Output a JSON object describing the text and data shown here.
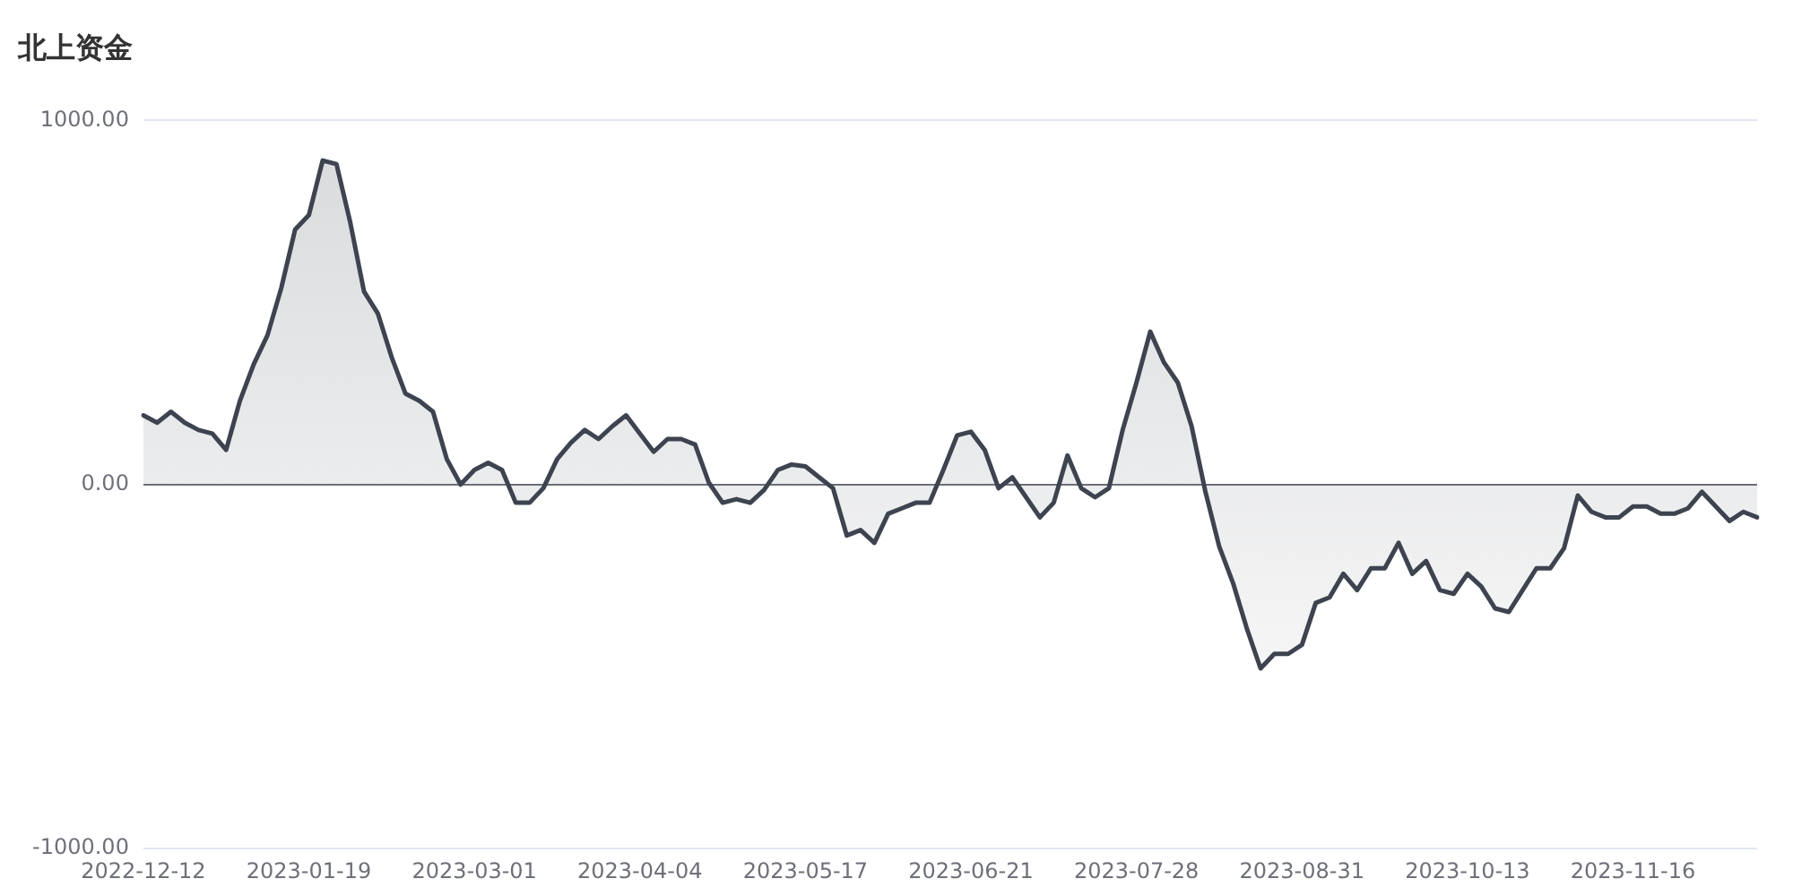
{
  "chart_data": {
    "type": "area",
    "title": "北上资金",
    "categories": [
      "2022-12-12",
      null,
      null,
      null,
      null,
      null,
      null,
      null,
      null,
      null,
      null,
      null,
      "2023-01-19",
      null,
      null,
      null,
      null,
      null,
      null,
      null,
      null,
      null,
      null,
      null,
      "2023-03-01",
      null,
      null,
      null,
      null,
      null,
      null,
      null,
      null,
      null,
      null,
      null,
      "2023-04-04",
      null,
      null,
      null,
      null,
      null,
      null,
      null,
      null,
      null,
      null,
      null,
      "2023-05-17",
      null,
      null,
      null,
      null,
      null,
      null,
      null,
      null,
      null,
      null,
      null,
      "2023-06-21",
      null,
      null,
      null,
      null,
      null,
      null,
      null,
      null,
      null,
      null,
      null,
      "2023-07-28",
      null,
      null,
      null,
      null,
      null,
      null,
      null,
      null,
      null,
      null,
      null,
      "2023-08-31",
      null,
      null,
      null,
      null,
      null,
      null,
      null,
      null,
      null,
      null,
      null,
      "2023-10-13",
      null,
      null,
      null,
      null,
      null,
      null,
      null,
      null,
      null,
      null,
      null,
      "2023-11-16",
      null,
      null,
      null,
      null,
      null,
      null,
      null,
      null,
      null
    ],
    "series": [
      {
        "color": "#3d4450",
        "values": [
          190,
          170,
          200,
          170,
          150,
          140,
          95,
          230,
          330,
          410,
          540,
          700,
          740,
          890,
          880,
          720,
          530,
          470,
          350,
          250,
          230,
          200,
          70,
          0,
          40,
          60,
          40,
          -50,
          -50,
          -10,
          70,
          115,
          150,
          125,
          160,
          190,
          140,
          90,
          125,
          125,
          110,
          5,
          -50,
          -40,
          -50,
          -15,
          40,
          55,
          50,
          20,
          -10,
          -140,
          -125,
          -160,
          -80,
          -65,
          -50,
          -50,
          40,
          135,
          145,
          95,
          -10,
          20,
          -35,
          -90,
          -50,
          80,
          -10,
          -35,
          -10,
          150,
          280,
          420,
          335,
          280,
          160,
          -20,
          -170,
          -270,
          -395,
          -505,
          -465,
          -465,
          -440,
          -325,
          -310,
          -245,
          -290,
          -230,
          -230,
          -160,
          -245,
          -210,
          -290,
          -300,
          -245,
          -280,
          -340,
          -350,
          -290,
          -230,
          -230,
          -175,
          -30,
          -75,
          -90,
          -90,
          -60,
          -60,
          -80,
          -80,
          -65,
          -20,
          -60,
          -100,
          -75,
          -90
        ]
      }
    ],
    "ylim": [
      -1000,
      1000
    ],
    "yticks": [
      {
        "value": -1000,
        "label": "-1000.00"
      },
      {
        "value": 0,
        "label": "0.00"
      },
      {
        "value": 1000,
        "label": "1000.00"
      }
    ],
    "grid": "y",
    "legend": false,
    "marker": "none",
    "line_style": "solid"
  }
}
